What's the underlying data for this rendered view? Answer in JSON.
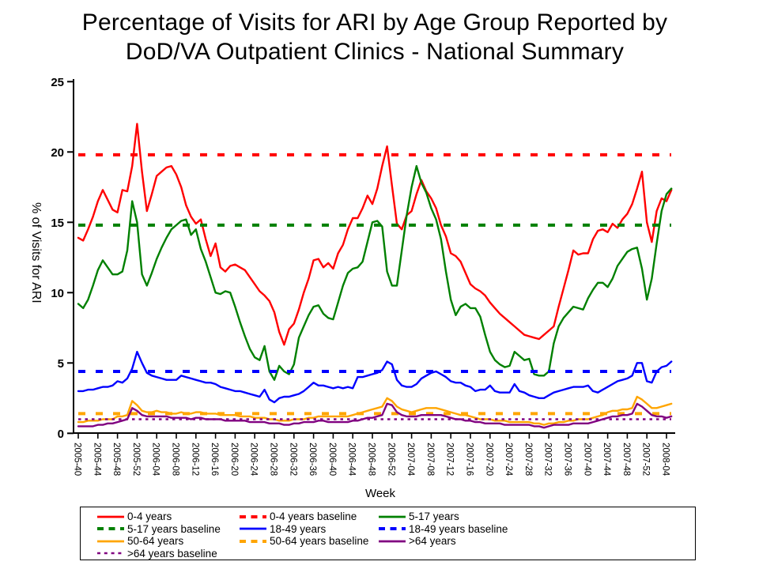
{
  "title": {
    "line1": "Percentage of Visits for ARI by Age Group Reported by",
    "line2": "DoD/VA Outpatient Clinics - National Summary"
  },
  "chart_data": {
    "type": "line",
    "title": "Percentage of Visits for ARI by Age Group Reported by DoD/VA Outpatient Clinics - National Summary",
    "xlabel": "Week",
    "ylabel": "% of Visits for ARI",
    "ylim": [
      0,
      25
    ],
    "y_ticks": [
      0,
      5,
      10,
      15,
      20,
      25
    ],
    "weeks_per_label": 4,
    "n_points": 122,
    "grid": false,
    "legend_position": "bottom",
    "x_tick_labels": [
      "2005-40",
      "2005-44",
      "2005-48",
      "2005-52",
      "2006-04",
      "2006-08",
      "2006-12",
      "2006-16",
      "2006-20",
      "2006-24",
      "2006-28",
      "2006-32",
      "2006-36",
      "2006-40",
      "2006-44",
      "2006-48",
      "2006-52",
      "2007-04",
      "2007-08",
      "2007-12",
      "2007-16",
      "2007-20",
      "2007-24",
      "2007-28",
      "2007-32",
      "2007-36",
      "2007-40",
      "2007-44",
      "2007-48",
      "2007-52",
      "2008-04"
    ],
    "series": [
      {
        "name": "0-4 years",
        "color": "#ff0000",
        "style": "solid",
        "values": [
          13.9,
          13.7,
          14.5,
          15.4,
          16.5,
          17.3,
          16.6,
          15.9,
          15.7,
          17.3,
          17.2,
          19.0,
          22.0,
          18.6,
          15.8,
          17.0,
          18.3,
          18.6,
          18.9,
          19.0,
          18.4,
          17.5,
          16.2,
          15.4,
          14.9,
          15.2,
          13.8,
          12.6,
          13.5,
          11.8,
          11.5,
          11.9,
          12.0,
          11.8,
          11.6,
          11.1,
          10.6,
          10.1,
          9.8,
          9.4,
          8.6,
          7.2,
          6.3,
          7.4,
          7.8,
          8.8,
          10.0,
          11.0,
          12.3,
          12.4,
          11.8,
          12.1,
          11.7,
          12.8,
          13.4,
          14.5,
          15.3,
          15.3,
          16.0,
          16.9,
          16.3,
          17.4,
          19.0,
          20.4,
          17.6,
          14.9,
          14.5,
          15.5,
          15.8,
          17.0,
          18.0,
          17.2,
          16.7,
          16.0,
          14.8,
          14.0,
          12.8,
          12.6,
          12.2,
          11.4,
          10.6,
          10.3,
          10.1,
          9.8,
          9.3,
          8.9,
          8.5,
          8.2,
          7.9,
          7.6,
          7.3,
          7.0,
          6.9,
          6.8,
          6.7,
          7.0,
          7.3,
          7.6,
          9.0,
          10.3,
          11.6,
          13.0,
          12.7,
          12.8,
          12.8,
          13.8,
          14.4,
          14.5,
          14.3,
          14.9,
          14.6,
          15.2,
          15.6,
          16.3,
          17.4,
          18.6,
          15.0,
          13.6,
          15.8,
          16.7,
          16.5,
          17.3
        ]
      },
      {
        "name": "0-4 years baseline",
        "color": "#ff0000",
        "style": "dashed",
        "baseline_value": 19.8
      },
      {
        "name": "5-17 years",
        "color": "#008000",
        "style": "solid",
        "values": [
          9.2,
          8.9,
          9.5,
          10.5,
          11.6,
          12.3,
          11.8,
          11.3,
          11.3,
          11.5,
          13.0,
          16.5,
          15.0,
          11.3,
          10.5,
          11.4,
          12.4,
          13.2,
          13.9,
          14.5,
          14.8,
          15.1,
          15.2,
          14.1,
          14.5,
          13.1,
          12.2,
          11.1,
          10.0,
          9.9,
          10.1,
          10.0,
          9.0,
          7.9,
          6.9,
          6.0,
          5.4,
          5.2,
          6.2,
          4.4,
          3.8,
          4.8,
          4.4,
          4.2,
          4.9,
          6.8,
          7.6,
          8.4,
          9.0,
          9.1,
          8.5,
          8.2,
          8.1,
          9.3,
          10.5,
          11.4,
          11.7,
          11.8,
          12.2,
          13.6,
          15.0,
          15.1,
          14.7,
          11.5,
          10.5,
          10.5,
          13.0,
          15.5,
          17.5,
          19.0,
          17.8,
          17.1,
          16.0,
          15.2,
          13.8,
          11.5,
          9.5,
          8.4,
          9.0,
          9.2,
          8.9,
          8.9,
          8.3,
          7.0,
          5.8,
          5.2,
          4.9,
          4.7,
          4.8,
          5.8,
          5.5,
          5.2,
          5.3,
          4.2,
          4.1,
          4.1,
          4.4,
          6.4,
          7.6,
          8.2,
          8.6,
          9.0,
          8.9,
          8.8,
          9.6,
          10.2,
          10.7,
          10.7,
          10.4,
          11.0,
          11.9,
          12.4,
          12.9,
          13.1,
          13.2,
          11.7,
          9.5,
          11.0,
          13.5,
          15.8,
          17.0,
          17.4
        ]
      },
      {
        "name": "5-17 years baseline",
        "color": "#008000",
        "style": "dashed",
        "baseline_value": 14.8
      },
      {
        "name": "18-49 years",
        "color": "#0000ff",
        "style": "solid",
        "values": [
          3.0,
          3.0,
          3.1,
          3.1,
          3.2,
          3.3,
          3.3,
          3.4,
          3.7,
          3.6,
          3.9,
          4.6,
          5.8,
          5.0,
          4.3,
          4.1,
          4.0,
          3.9,
          3.8,
          3.8,
          3.8,
          4.1,
          4.0,
          3.9,
          3.8,
          3.7,
          3.6,
          3.6,
          3.5,
          3.3,
          3.2,
          3.1,
          3.0,
          3.0,
          2.9,
          2.8,
          2.7,
          2.6,
          3.1,
          2.4,
          2.2,
          2.5,
          2.6,
          2.6,
          2.7,
          2.8,
          3.0,
          3.3,
          3.6,
          3.4,
          3.4,
          3.3,
          3.2,
          3.3,
          3.2,
          3.3,
          3.2,
          4.0,
          4.0,
          4.1,
          4.2,
          4.3,
          4.5,
          5.1,
          4.9,
          3.8,
          3.4,
          3.3,
          3.3,
          3.5,
          3.9,
          4.1,
          4.3,
          4.4,
          4.2,
          4.0,
          3.7,
          3.6,
          3.6,
          3.4,
          3.3,
          3.0,
          3.1,
          3.1,
          3.4,
          3.0,
          2.9,
          2.9,
          2.9,
          3.5,
          3.0,
          2.9,
          2.7,
          2.6,
          2.5,
          2.5,
          2.7,
          2.9,
          3.0,
          3.1,
          3.2,
          3.3,
          3.3,
          3.3,
          3.4,
          3.0,
          2.9,
          3.1,
          3.3,
          3.5,
          3.7,
          3.8,
          3.9,
          4.1,
          5.0,
          5.0,
          3.7,
          3.6,
          4.4,
          4.7,
          4.8,
          5.1
        ]
      },
      {
        "name": "18-49 years baseline",
        "color": "#0000ff",
        "style": "dashed",
        "baseline_value": 4.4
      },
      {
        "name": "50-64 years",
        "color": "#ffa500",
        "style": "solid",
        "values": [
          0.8,
          0.8,
          0.9,
          0.9,
          0.9,
          1.0,
          1.0,
          1.0,
          1.2,
          1.2,
          1.3,
          2.3,
          2.0,
          1.6,
          1.5,
          1.5,
          1.6,
          1.5,
          1.5,
          1.4,
          1.4,
          1.5,
          1.4,
          1.4,
          1.5,
          1.5,
          1.4,
          1.4,
          1.4,
          1.3,
          1.3,
          1.3,
          1.3,
          1.2,
          1.2,
          1.2,
          1.1,
          1.1,
          1.1,
          1.0,
          1.0,
          0.9,
          0.9,
          0.9,
          1.0,
          1.0,
          1.0,
          1.1,
          1.1,
          1.2,
          1.2,
          1.2,
          1.2,
          1.2,
          1.2,
          1.2,
          1.3,
          1.4,
          1.5,
          1.6,
          1.7,
          1.8,
          1.9,
          2.5,
          2.3,
          1.9,
          1.7,
          1.6,
          1.5,
          1.6,
          1.7,
          1.8,
          1.8,
          1.8,
          1.7,
          1.6,
          1.5,
          1.4,
          1.3,
          1.3,
          1.2,
          1.1,
          1.0,
          1.0,
          1.0,
          0.9,
          0.9,
          0.9,
          0.8,
          0.8,
          0.8,
          0.8,
          0.8,
          0.7,
          0.7,
          0.6,
          0.7,
          0.7,
          0.8,
          0.8,
          0.9,
          0.9,
          1.0,
          1.0,
          1.0,
          1.1,
          1.2,
          1.3,
          1.5,
          1.6,
          1.6,
          1.7,
          1.7,
          1.8,
          2.6,
          2.4,
          2.1,
          1.8,
          1.8,
          1.9,
          2.0,
          2.1
        ]
      },
      {
        "name": "50-64 years baseline",
        "color": "#ffa500",
        "style": "dashed",
        "baseline_value": 1.4
      },
      {
        "name": ">64 years",
        "color": "#800080",
        "style": "solid",
        "values": [
          0.5,
          0.5,
          0.5,
          0.5,
          0.6,
          0.6,
          0.7,
          0.7,
          0.8,
          0.9,
          1.0,
          1.8,
          1.6,
          1.3,
          1.2,
          1.2,
          1.2,
          1.2,
          1.2,
          1.1,
          1.1,
          1.1,
          1.1,
          1.0,
          1.1,
          1.1,
          1.0,
          1.0,
          1.0,
          1.0,
          0.9,
          0.9,
          0.9,
          0.9,
          0.9,
          0.8,
          0.8,
          0.8,
          0.8,
          0.7,
          0.7,
          0.7,
          0.6,
          0.6,
          0.7,
          0.7,
          0.8,
          0.8,
          0.8,
          0.9,
          0.9,
          0.8,
          0.8,
          0.8,
          0.8,
          0.8,
          0.9,
          0.9,
          1.0,
          1.1,
          1.1,
          1.2,
          1.3,
          2.1,
          2.0,
          1.5,
          1.3,
          1.2,
          1.2,
          1.2,
          1.3,
          1.3,
          1.3,
          1.3,
          1.3,
          1.2,
          1.1,
          1.0,
          1.0,
          0.9,
          0.9,
          0.8,
          0.8,
          0.7,
          0.7,
          0.7,
          0.7,
          0.6,
          0.6,
          0.6,
          0.6,
          0.6,
          0.6,
          0.5,
          0.5,
          0.4,
          0.5,
          0.6,
          0.6,
          0.6,
          0.6,
          0.7,
          0.7,
          0.7,
          0.7,
          0.8,
          0.9,
          1.0,
          1.1,
          1.2,
          1.2,
          1.3,
          1.3,
          1.4,
          2.1,
          1.9,
          1.6,
          1.3,
          1.2,
          1.2,
          1.1,
          1.2
        ]
      },
      {
        "name": ">64 years baseline",
        "color": "#800080",
        "style": "dotted",
        "baseline_value": 1.0
      }
    ]
  },
  "legend": {
    "items": [
      {
        "label": "0-4 years"
      },
      {
        "label": "0-4 years baseline"
      },
      {
        "label": "5-17 years"
      },
      {
        "label": "5-17 years baseline"
      },
      {
        "label": "18-49 years"
      },
      {
        "label": "18-49 years baseline"
      },
      {
        "label": "50-64 years"
      },
      {
        "label": "50-64 years baseline"
      },
      {
        "label": ">64 years"
      },
      {
        "label": ">64 years baseline"
      }
    ]
  }
}
